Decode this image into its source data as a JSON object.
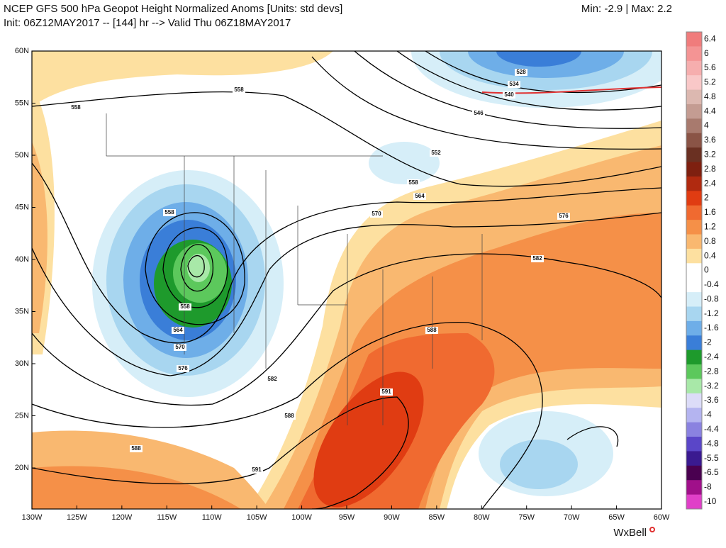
{
  "header": {
    "title": "NCEP GFS 500 hPa Geopot Height Normalized Anoms [Units: std devs]",
    "subtitle": "Init: 06Z12MAY2017 -- [144] hr --> Valid Thu 06Z18MAY2017",
    "range": "Min: -2.9 | Max: 2.2"
  },
  "map": {
    "lat_labels": [
      "60N",
      "55N",
      "50N",
      "45N",
      "40N",
      "35N",
      "30N",
      "25N",
      "20N"
    ],
    "lon_labels": [
      "130W",
      "125W",
      "120W",
      "115W",
      "110W",
      "105W",
      "100W",
      "95W",
      "90W",
      "85W",
      "80W",
      "75W",
      "70W",
      "65W",
      "60W"
    ],
    "contour_labels": [
      "558",
      "558",
      "546",
      "528",
      "534",
      "540",
      "552",
      "558",
      "564",
      "570",
      "558",
      "576",
      "582",
      "558",
      "564",
      "570",
      "576",
      "582",
      "588",
      "591",
      "588",
      "588",
      "591"
    ]
  },
  "colorbar": [
    {
      "label": "6.4",
      "color": "#f07c7c"
    },
    {
      "label": "6",
      "color": "#f49494"
    },
    {
      "label": "5.6",
      "color": "#f6aeae"
    },
    {
      "label": "5.2",
      "color": "#f9c8c8"
    },
    {
      "label": "4.8",
      "color": "#dcb8b0"
    },
    {
      "label": "4.4",
      "color": "#c49c92"
    },
    {
      "label": "4",
      "color": "#a87a6e"
    },
    {
      "label": "3.6",
      "color": "#8a5446"
    },
    {
      "label": "3.2",
      "color": "#6a3022"
    },
    {
      "label": "2.8",
      "color": "#7e2010"
    },
    {
      "label": "2.4",
      "color": "#b02a10"
    },
    {
      "label": "2",
      "color": "#e03c12"
    },
    {
      "label": "1.6",
      "color": "#f06a30"
    },
    {
      "label": "1.2",
      "color": "#f59048"
    },
    {
      "label": "0.8",
      "color": "#f9b870"
    },
    {
      "label": "0.4",
      "color": "#fde0a0"
    },
    {
      "label": "0",
      "color": "#ffffff"
    },
    {
      "label": "-0.4",
      "color": "#ffffff"
    },
    {
      "label": "-0.8",
      "color": "#d6eef8"
    },
    {
      "label": "-1.2",
      "color": "#a8d6f0"
    },
    {
      "label": "-1.6",
      "color": "#6eaee8"
    },
    {
      "label": "-2",
      "color": "#3a7ed8"
    },
    {
      "label": "-2.4",
      "color": "#1e9a2c"
    },
    {
      "label": "-2.8",
      "color": "#5cc85c"
    },
    {
      "label": "-3.2",
      "color": "#a8e8a8"
    },
    {
      "label": "-3.6",
      "color": "#dcdcf8"
    },
    {
      "label": "-4",
      "color": "#b4b4f0"
    },
    {
      "label": "-4.4",
      "color": "#8a82e0"
    },
    {
      "label": "-4.8",
      "color": "#5a46c8"
    },
    {
      "label": "-5.5",
      "color": "#3a1a90"
    },
    {
      "label": "-6.5",
      "color": "#4a0050"
    },
    {
      "label": "-8",
      "color": "#a0108a"
    },
    {
      "label": "-10",
      "color": "#e040c8"
    }
  ],
  "brand": "WxBell"
}
